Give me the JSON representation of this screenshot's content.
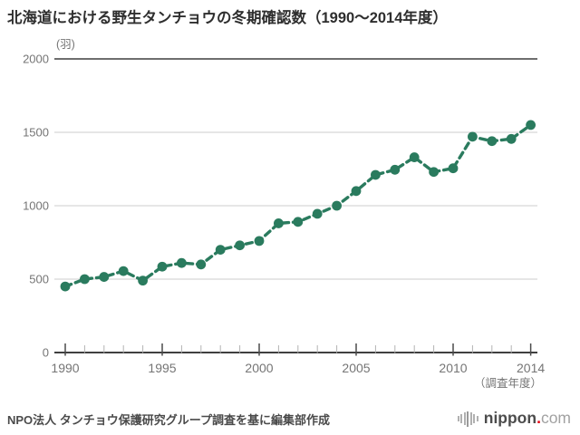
{
  "title": "北海道における野生タンチョウの冬期確認数（1990〜2014年度）",
  "chart_data": {
    "type": "line",
    "title": "北海道における野生タンチョウの冬期確認数（1990〜2014年度）",
    "y_unit_label": "(羽)",
    "x_axis_label": "（調査年度）",
    "x": [
      1990,
      1991,
      1992,
      1993,
      1994,
      1995,
      1996,
      1997,
      1998,
      1999,
      2000,
      2001,
      2002,
      2003,
      2004,
      2005,
      2006,
      2007,
      2008,
      2009,
      2010,
      2011,
      2012,
      2013,
      2014
    ],
    "values": [
      450,
      500,
      515,
      555,
      490,
      585,
      610,
      600,
      700,
      730,
      760,
      880,
      890,
      945,
      1000,
      1100,
      1210,
      1245,
      1330,
      1230,
      1255,
      1470,
      1440,
      1455,
      1550
    ],
    "ylim": [
      0,
      2000
    ],
    "yticks": [
      0,
      500,
      1000,
      1500,
      2000
    ],
    "xtick_labels": [
      "1990",
      "1995",
      "2000",
      "2005",
      "2010",
      "2014"
    ],
    "grid": true,
    "legend": "none",
    "line_color": "#2a7b5e",
    "line_style": "dashed",
    "marker": "circle",
    "gridline_color": "#cccccc",
    "axis_color": "#3f3f3f",
    "tick_label_color": "#757575"
  },
  "footer": {
    "source": "NPO法人 タンチョウ保護研究グループ調査を基に編集部作成"
  },
  "logo": {
    "icon": "nippon-mark",
    "brand": "nippon",
    "dot": ".",
    "tld": "com"
  }
}
